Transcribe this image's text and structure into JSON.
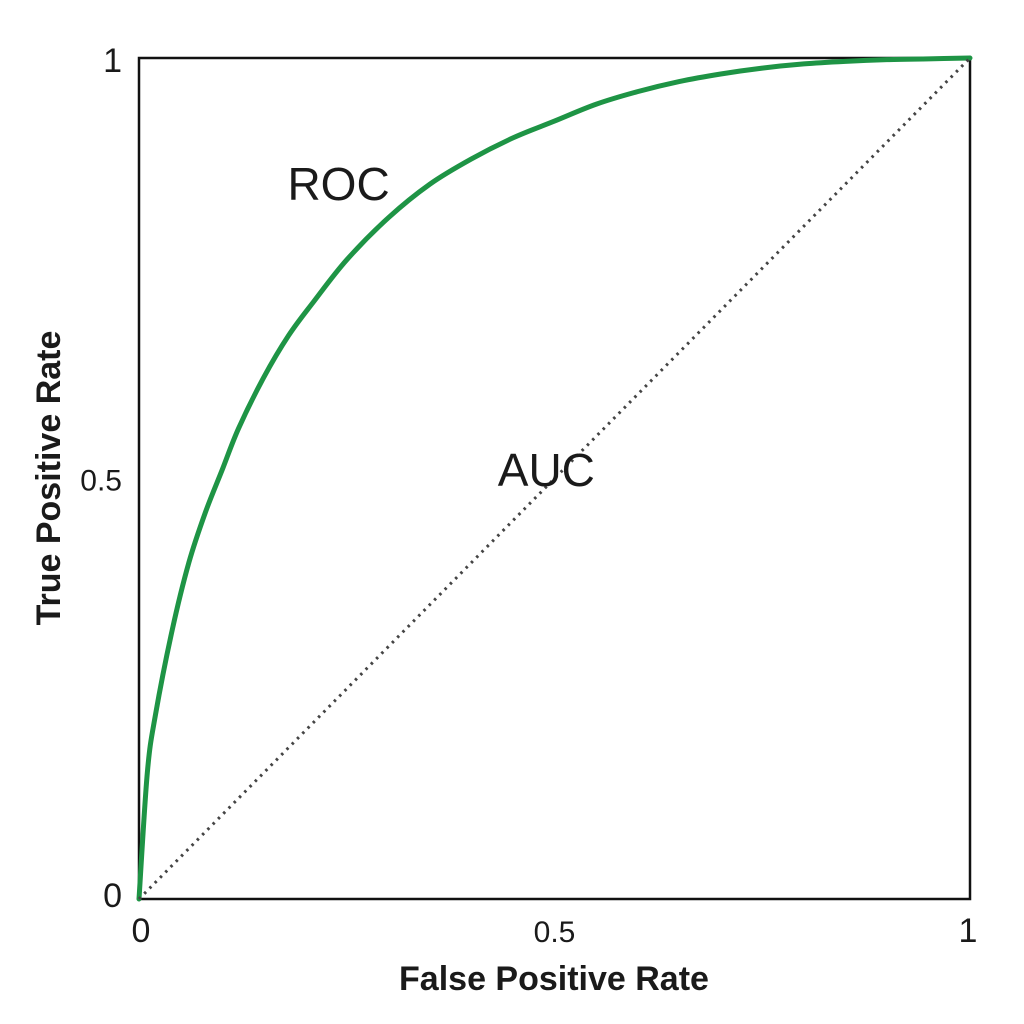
{
  "chart_data": {
    "type": "line",
    "title": "",
    "xlabel": "False Positive Rate",
    "ylabel": "True Positive Rate",
    "xlim": [
      0,
      1
    ],
    "ylim": [
      0,
      1
    ],
    "grid": false,
    "x_ticks": [
      {
        "value": 0,
        "label": "0"
      },
      {
        "value": 0.5,
        "label": "0.5"
      },
      {
        "value": 1,
        "label": "1"
      }
    ],
    "y_ticks": [
      {
        "value": 0,
        "label": "0"
      },
      {
        "value": 0.5,
        "label": "0.5"
      },
      {
        "value": 1,
        "label": "1"
      }
    ],
    "series": [
      {
        "style": "solid",
        "color": "#1e9445",
        "x": [
          0,
          0.01,
          0.02,
          0.04,
          0.06,
          0.08,
          0.1,
          0.12,
          0.15,
          0.18,
          0.21,
          0.25,
          0.3,
          0.35,
          0.4,
          0.45,
          0.5,
          0.55,
          0.6,
          0.65,
          0.7,
          0.75,
          0.8,
          0.85,
          0.9,
          0.95,
          1.0
        ],
        "y": [
          0,
          0.15,
          0.22,
          0.32,
          0.4,
          0.46,
          0.51,
          0.56,
          0.62,
          0.67,
          0.71,
          0.76,
          0.81,
          0.85,
          0.88,
          0.905,
          0.925,
          0.945,
          0.96,
          0.972,
          0.981,
          0.988,
          0.993,
          0.996,
          0.998,
          0.999,
          1.0
        ]
      },
      {
        "style": "dotted",
        "color": "#444444",
        "x": [
          0,
          1
        ],
        "y": [
          0,
          1
        ]
      }
    ],
    "annotations": [
      {
        "text": "ROC",
        "x": 0.18,
        "y": 0.85
      },
      {
        "text": "AUC",
        "x": 0.43,
        "y": 0.51
      }
    ]
  }
}
